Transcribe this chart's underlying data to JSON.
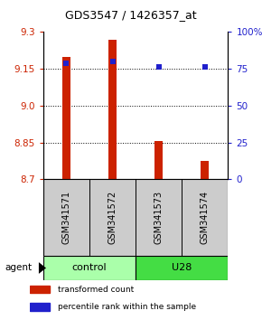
{
  "title": "GDS3547 / 1426357_at",
  "samples": [
    "GSM341571",
    "GSM341572",
    "GSM341573",
    "GSM341574"
  ],
  "bar_values": [
    9.2,
    9.27,
    8.855,
    8.775
  ],
  "bar_base": 8.7,
  "percentile_values": [
    79,
    80,
    76,
    76
  ],
  "ylim_left": [
    8.7,
    9.3
  ],
  "ylim_right": [
    0,
    100
  ],
  "yticks_left": [
    8.7,
    8.85,
    9.0,
    9.15,
    9.3
  ],
  "yticks_right": [
    0,
    25,
    50,
    75,
    100
  ],
  "ytick_labels_right": [
    "0",
    "25",
    "50",
    "75",
    "100%"
  ],
  "grid_values": [
    8.85,
    9.0,
    9.15
  ],
  "bar_color": "#cc2200",
  "percentile_color": "#2020cc",
  "groups": [
    {
      "label": "control",
      "samples": [
        0,
        1
      ],
      "color": "#aaffaa"
    },
    {
      "label": "U28",
      "samples": [
        2,
        3
      ],
      "color": "#44dd44"
    }
  ],
  "agent_label": "agent",
  "legend": [
    {
      "label": "transformed count",
      "color": "#cc2200"
    },
    {
      "label": "percentile rank within the sample",
      "color": "#2020cc"
    }
  ],
  "bar_width": 0.18,
  "sample_label_color": "#bbbbbb",
  "title_fontsize": 9
}
